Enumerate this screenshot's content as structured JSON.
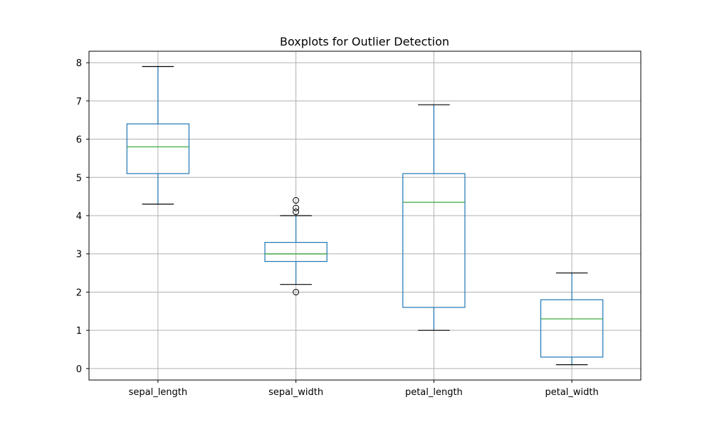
{
  "chart_data": {
    "type": "boxplot",
    "title": "Boxplots for Outlier Detection",
    "xlabel": "",
    "ylabel": "",
    "ylim": [
      -0.3,
      8.3
    ],
    "yticks": [
      0,
      1,
      2,
      3,
      4,
      5,
      6,
      7,
      8
    ],
    "grid": true,
    "colors": {
      "box": "#1f77b4",
      "median": "#2ca02c",
      "whisker_cap": "#000000",
      "grid": "#b0b0b0"
    },
    "categories": [
      "sepal_length",
      "sepal_width",
      "petal_length",
      "petal_width"
    ],
    "boxes": [
      {
        "name": "sepal_length",
        "whislo": 4.3,
        "q1": 5.1,
        "med": 5.8,
        "q3": 6.4,
        "whishi": 7.9,
        "fliers": []
      },
      {
        "name": "sepal_width",
        "whislo": 2.2,
        "q1": 2.8,
        "med": 3.0,
        "q3": 3.3,
        "whishi": 4.0,
        "fliers": [
          2.0,
          4.1,
          4.2,
          4.4
        ]
      },
      {
        "name": "petal_length",
        "whislo": 1.0,
        "q1": 1.6,
        "med": 4.35,
        "q3": 5.1,
        "whishi": 6.9,
        "fliers": []
      },
      {
        "name": "petal_width",
        "whislo": 0.1,
        "q1": 0.3,
        "med": 1.3,
        "q3": 1.8,
        "whishi": 2.5,
        "fliers": []
      }
    ]
  }
}
